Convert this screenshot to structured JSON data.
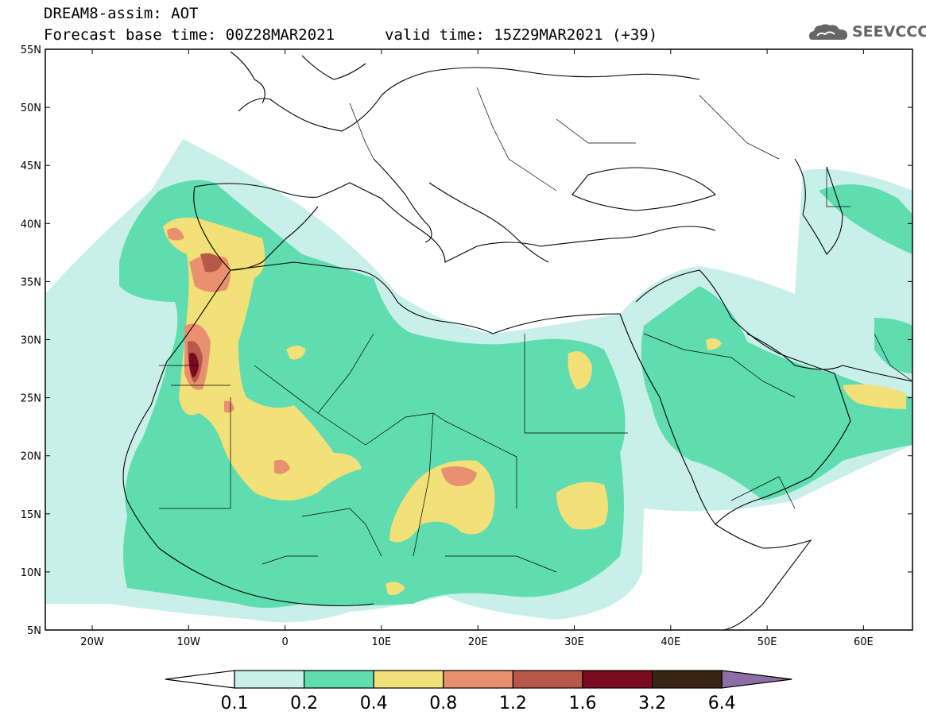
{
  "header": {
    "title": "DREAM8-assim: AOT",
    "base_time": "Forecast base time: 00Z28MAR2021",
    "valid_time": "valid time: 15Z29MAR2021 (+39)",
    "logo_text": "SEEVCCC",
    "logo_icon": "cloud-icon"
  },
  "map": {
    "lat_labels": [
      "55N",
      "50N",
      "45N",
      "40N",
      "35N",
      "30N",
      "25N",
      "20N",
      "15N",
      "10N",
      "5N"
    ],
    "lon_labels": [
      "20W",
      "10W",
      "0",
      "10E",
      "20E",
      "30E",
      "40E",
      "50E",
      "60E"
    ],
    "colors": {
      "c01": "#c8f0e8",
      "c02": "#5fdcb0",
      "c04": "#f2e078",
      "c08": "#e89070",
      "c12": "#b85848",
      "c16": "#7a0a20",
      "c32": "#3c2414",
      "c64": "#8e6ea6"
    }
  },
  "colorbar": {
    "labels": [
      "0.1",
      "0.2",
      "0.4",
      "0.8",
      "1.2",
      "1.6",
      "3.2",
      "6.4"
    ],
    "colors": [
      "#ffffff",
      "#c8f0e8",
      "#5fdcb0",
      "#f2e078",
      "#e89070",
      "#b85848",
      "#7a0a20",
      "#3c2414",
      "#8e6ea6"
    ]
  }
}
